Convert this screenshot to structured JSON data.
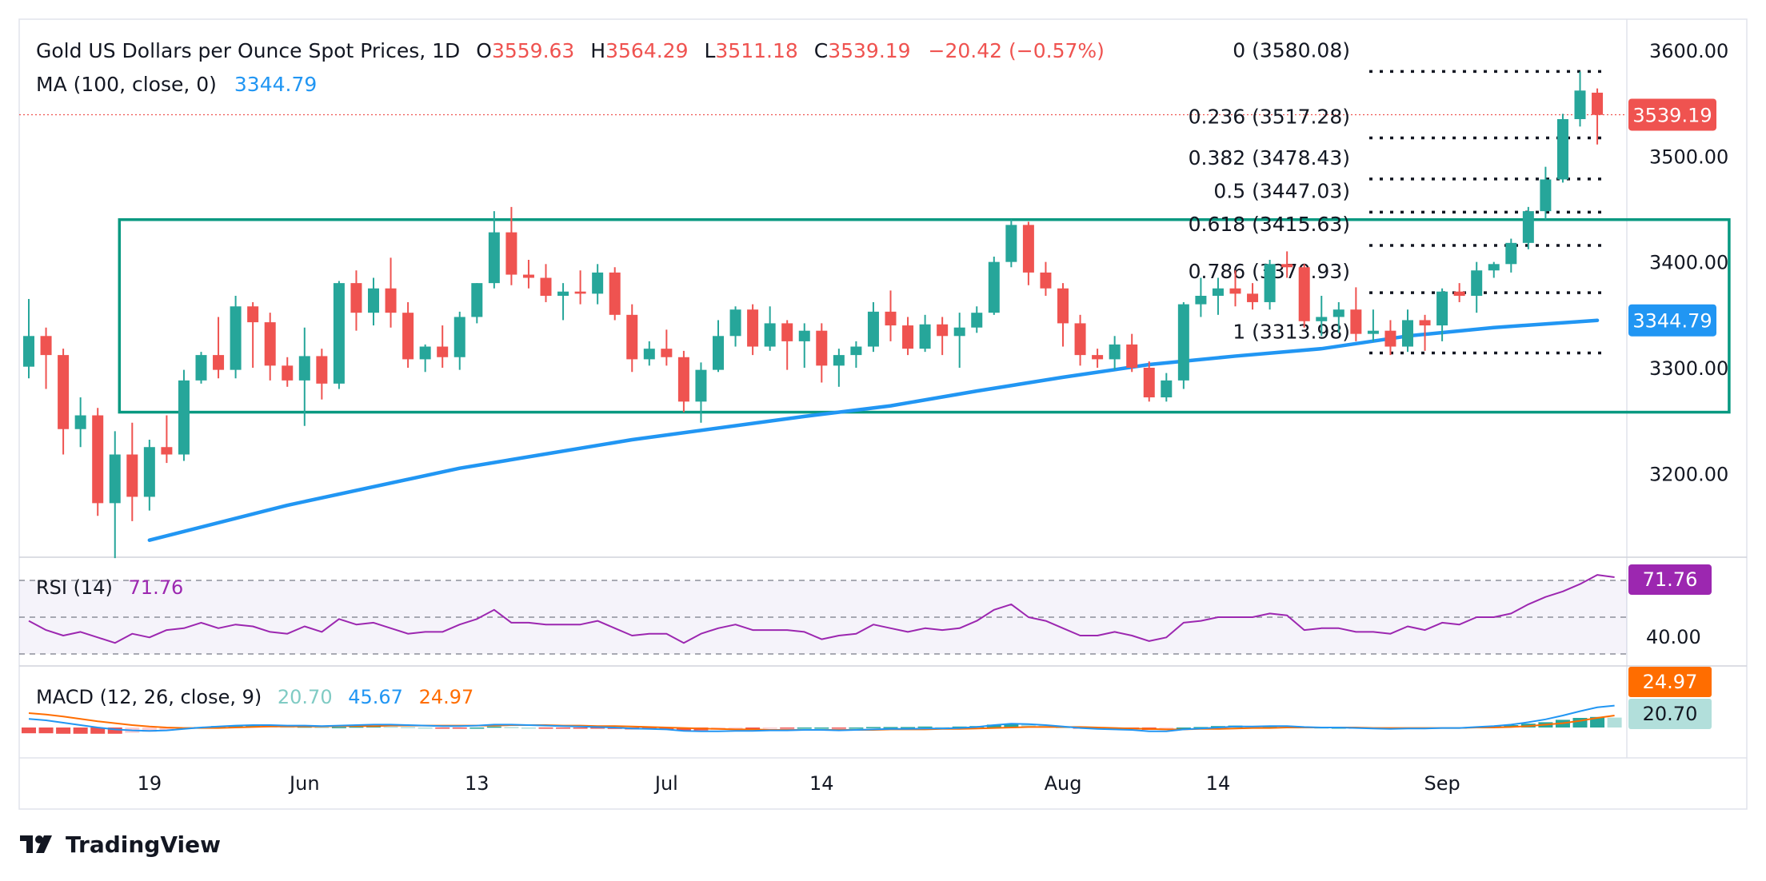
{
  "header": {
    "title": "Gold US Dollars per Ounce Spot Prices, 1D",
    "o_label": "O",
    "o_value": "3559.63",
    "h_label": "H",
    "h_value": "3564.29",
    "l_label": "L",
    "l_value": "3511.18",
    "c_label": "C",
    "c_value": "3539.19",
    "change": "−20.42 (−0.57%)",
    "ma_label": "MA (100, close, 0)",
    "ma_value": "3344.79"
  },
  "rsi": {
    "label": "RSI (14)",
    "value": "71.76",
    "axis_label": "40.00",
    "badge": "71.76"
  },
  "macd": {
    "label": "MACD (12, 26, close, 9)",
    "hist": "20.70",
    "macd": "45.67",
    "signal": "24.97",
    "badge_signal": "24.97",
    "badge_hist": "20.70"
  },
  "price_badge": "3539.19",
  "ma_badge": "3344.79",
  "logo": {
    "text": "TradingView"
  },
  "colors": {
    "up": "#26a69a",
    "down": "#ef5350",
    "ma": "#2196f3",
    "rsi": "#9c27b0",
    "macd": "#2196f3",
    "signal": "#ff6d00",
    "box": "#089981"
  },
  "chart_data": {
    "type": "candlestick",
    "title": "Gold US Dollars per Ounce Spot Prices, 1D",
    "y_ticks": [
      "3200.00",
      "3300.00",
      "3400.00",
      "3500.00",
      "3600.00"
    ],
    "ylim": [
      3130,
      3610
    ],
    "x_ticks": [
      {
        "label": "19",
        "index": 7
      },
      {
        "label": "Jun",
        "index": 16
      },
      {
        "label": "13",
        "index": 26
      },
      {
        "label": "Jul",
        "index": 37
      },
      {
        "label": "14",
        "index": 46
      },
      {
        "label": "Aug",
        "index": 60
      },
      {
        "label": "14",
        "index": 69
      },
      {
        "label": "Sep",
        "index": 82
      }
    ],
    "candles": [
      [
        3301,
        3365,
        3290,
        3330
      ],
      [
        3330,
        3338,
        3280,
        3312
      ],
      [
        3312,
        3318,
        3218,
        3242
      ],
      [
        3242,
        3272,
        3225,
        3255
      ],
      [
        3255,
        3262,
        3160,
        3172
      ],
      [
        3172,
        3240,
        3120,
        3218
      ],
      [
        3218,
        3248,
        3155,
        3178
      ],
      [
        3178,
        3232,
        3165,
        3225
      ],
      [
        3225,
        3255,
        3210,
        3218
      ],
      [
        3218,
        3298,
        3212,
        3288
      ],
      [
        3288,
        3315,
        3285,
        3312
      ],
      [
        3312,
        3348,
        3290,
        3298
      ],
      [
        3298,
        3368,
        3290,
        3358
      ],
      [
        3358,
        3362,
        3300,
        3343
      ],
      [
        3343,
        3352,
        3288,
        3302
      ],
      [
        3302,
        3310,
        3282,
        3288
      ],
      [
        3288,
        3338,
        3245,
        3311
      ],
      [
        3311,
        3318,
        3270,
        3285
      ],
      [
        3285,
        3382,
        3280,
        3380
      ],
      [
        3380,
        3392,
        3335,
        3352
      ],
      [
        3352,
        3385,
        3340,
        3375
      ],
      [
        3375,
        3404,
        3338,
        3352
      ],
      [
        3352,
        3362,
        3300,
        3308
      ],
      [
        3308,
        3322,
        3296,
        3320
      ],
      [
        3320,
        3340,
        3300,
        3310
      ],
      [
        3310,
        3353,
        3298,
        3348
      ],
      [
        3348,
        3380,
        3342,
        3380
      ],
      [
        3380,
        3448,
        3375,
        3428
      ],
      [
        3428,
        3452,
        3378,
        3388
      ],
      [
        3388,
        3402,
        3375,
        3385
      ],
      [
        3385,
        3398,
        3362,
        3368
      ],
      [
        3368,
        3380,
        3345,
        3372
      ],
      [
        3372,
        3392,
        3360,
        3370
      ],
      [
        3370,
        3398,
        3360,
        3390
      ],
      [
        3390,
        3395,
        3345,
        3350
      ],
      [
        3350,
        3360,
        3296,
        3308
      ],
      [
        3308,
        3325,
        3302,
        3318
      ],
      [
        3318,
        3336,
        3302,
        3310
      ],
      [
        3310,
        3316,
        3258,
        3268
      ],
      [
        3268,
        3305,
        3248,
        3298
      ],
      [
        3298,
        3345,
        3296,
        3330
      ],
      [
        3330,
        3358,
        3320,
        3355
      ],
      [
        3355,
        3360,
        3312,
        3320
      ],
      [
        3320,
        3358,
        3316,
        3342
      ],
      [
        3342,
        3345,
        3298,
        3325
      ],
      [
        3325,
        3342,
        3300,
        3335
      ],
      [
        3335,
        3342,
        3286,
        3302
      ],
      [
        3302,
        3318,
        3282,
        3312
      ],
      [
        3312,
        3325,
        3300,
        3320
      ],
      [
        3320,
        3362,
        3315,
        3353
      ],
      [
        3353,
        3373,
        3325,
        3340
      ],
      [
        3340,
        3348,
        3312,
        3318
      ],
      [
        3318,
        3350,
        3315,
        3341
      ],
      [
        3341,
        3348,
        3312,
        3330
      ],
      [
        3330,
        3352,
        3300,
        3338
      ],
      [
        3338,
        3358,
        3333,
        3352
      ],
      [
        3352,
        3405,
        3350,
        3400
      ],
      [
        3400,
        3440,
        3395,
        3435
      ],
      [
        3435,
        3438,
        3378,
        3390
      ],
      [
        3390,
        3400,
        3368,
        3375
      ],
      [
        3375,
        3380,
        3320,
        3342
      ],
      [
        3342,
        3350,
        3302,
        3312
      ],
      [
        3312,
        3318,
        3300,
        3308
      ],
      [
        3308,
        3330,
        3298,
        3322
      ],
      [
        3322,
        3332,
        3296,
        3300
      ],
      [
        3300,
        3306,
        3268,
        3272
      ],
      [
        3272,
        3295,
        3268,
        3288
      ],
      [
        3288,
        3362,
        3280,
        3360
      ],
      [
        3360,
        3385,
        3348,
        3368
      ],
      [
        3368,
        3385,
        3350,
        3375
      ],
      [
        3375,
        3392,
        3358,
        3370
      ],
      [
        3370,
        3380,
        3355,
        3362
      ],
      [
        3362,
        3402,
        3355,
        3398
      ],
      [
        3398,
        3410,
        3385,
        3395
      ],
      [
        3395,
        3398,
        3338,
        3344
      ],
      [
        3344,
        3368,
        3330,
        3348
      ],
      [
        3348,
        3362,
        3333,
        3355
      ],
      [
        3355,
        3376,
        3325,
        3332
      ],
      [
        3332,
        3355,
        3325,
        3335
      ],
      [
        3335,
        3345,
        3312,
        3320
      ],
      [
        3320,
        3355,
        3315,
        3345
      ],
      [
        3345,
        3350,
        3316,
        3340
      ],
      [
        3340,
        3375,
        3325,
        3372
      ],
      [
        3372,
        3380,
        3362,
        3368
      ],
      [
        3368,
        3400,
        3352,
        3392
      ],
      [
        3392,
        3400,
        3385,
        3398
      ],
      [
        3398,
        3422,
        3390,
        3418
      ],
      [
        3418,
        3452,
        3412,
        3448
      ],
      [
        3448,
        3490,
        3440,
        3478
      ],
      [
        3478,
        3540,
        3475,
        3535
      ],
      [
        3535,
        3580,
        3528,
        3562
      ],
      [
        3560,
        3564,
        3511,
        3539
      ]
    ],
    "ma100": [
      [
        7,
        3137
      ],
      [
        15,
        3170
      ],
      [
        25,
        3205
      ],
      [
        35,
        3232
      ],
      [
        45,
        3254
      ],
      [
        50,
        3264
      ],
      [
        55,
        3278
      ],
      [
        60,
        3291
      ],
      [
        65,
        3303
      ],
      [
        70,
        3311
      ],
      [
        75,
        3318
      ],
      [
        80,
        3330
      ],
      [
        85,
        3338
      ],
      [
        91,
        3344.79
      ]
    ],
    "box": {
      "top": 3440,
      "bottom": 3258,
      "start_index": 6,
      "end_index": 98
    },
    "fib_levels": [
      {
        "label": "0 (3580.08)",
        "value": 3580.08
      },
      {
        "label": "0.236 (3517.28)",
        "value": 3517.28
      },
      {
        "label": "0.382 (3478.43)",
        "value": 3478.43
      },
      {
        "label": "0.5 (3447.03)",
        "value": 3447.03
      },
      {
        "label": "0.618 (3415.63)",
        "value": 3415.63
      },
      {
        "label": "0.786 (3370.93)",
        "value": 3370.93
      },
      {
        "label": "1 (3313.98)",
        "value": 3313.98
      }
    ],
    "last_close": 3539.19,
    "rsi_levels": [
      70,
      50,
      30
    ],
    "rsi": [
      48,
      43,
      40,
      42,
      39,
      36,
      41,
      39,
      43,
      44,
      47,
      44,
      46,
      45,
      42,
      41,
      45,
      42,
      49,
      46,
      47,
      44,
      41,
      42,
      42,
      46,
      49,
      54,
      47,
      47,
      46,
      46,
      46,
      48,
      44,
      40,
      41,
      41,
      36,
      41,
      44,
      46,
      43,
      43,
      43,
      42,
      38,
      40,
      41,
      46,
      44,
      42,
      44,
      43,
      44,
      48,
      54,
      57,
      50,
      48,
      44,
      40,
      40,
      42,
      40,
      37,
      39,
      47,
      48,
      50,
      50,
      50,
      52,
      51,
      43,
      44,
      44,
      42,
      42,
      41,
      45,
      43,
      47,
      46,
      50,
      50,
      52,
      57,
      61,
      64,
      68,
      73,
      71.76
    ],
    "macd": [
      18,
      15,
      10,
      5,
      0,
      -4,
      -6,
      -7,
      -6,
      -3,
      0,
      2,
      4,
      5,
      5,
      4,
      4,
      3,
      4,
      5,
      6,
      6,
      5,
      4,
      3,
      3,
      4,
      6,
      6,
      5,
      4,
      3,
      2,
      1,
      0,
      -2,
      -3,
      -4,
      -7,
      -8,
      -8,
      -7,
      -7,
      -6,
      -6,
      -5,
      -5,
      -6,
      -5,
      -4,
      -3,
      -3,
      -2,
      -2,
      -1,
      1,
      5,
      8,
      7,
      5,
      2,
      -1,
      -3,
      -4,
      -5,
      -8,
      -8,
      -4,
      -2,
      0,
      2,
      2,
      3,
      3,
      1,
      0,
      0,
      -1,
      -2,
      -3,
      -2,
      -2,
      -1,
      -1,
      1,
      3,
      6,
      11,
      17,
      25,
      34,
      42,
      45.67
    ],
    "signal": [
      30,
      27,
      23,
      18,
      13,
      9,
      5,
      2,
      0,
      -1,
      -1,
      -1,
      0,
      1,
      2,
      2,
      2,
      2,
      3,
      3,
      3,
      4,
      4,
      4,
      4,
      4,
      4,
      4,
      5,
      5,
      5,
      4,
      4,
      3,
      3,
      2,
      1,
      0,
      -1,
      -2,
      -3,
      -4,
      -4,
      -5,
      -5,
      -5,
      -5,
      -5,
      -5,
      -5,
      -4,
      -4,
      -4,
      -3,
      -3,
      -2,
      -1,
      0,
      1,
      1,
      1,
      1,
      0,
      -1,
      -2,
      -3,
      -4,
      -4,
      -3,
      -3,
      -2,
      -1,
      -1,
      0,
      0,
      0,
      0,
      0,
      -1,
      -1,
      -1,
      -1,
      -1,
      -1,
      0,
      0,
      1,
      3,
      6,
      9,
      14,
      20,
      24.97
    ]
  }
}
